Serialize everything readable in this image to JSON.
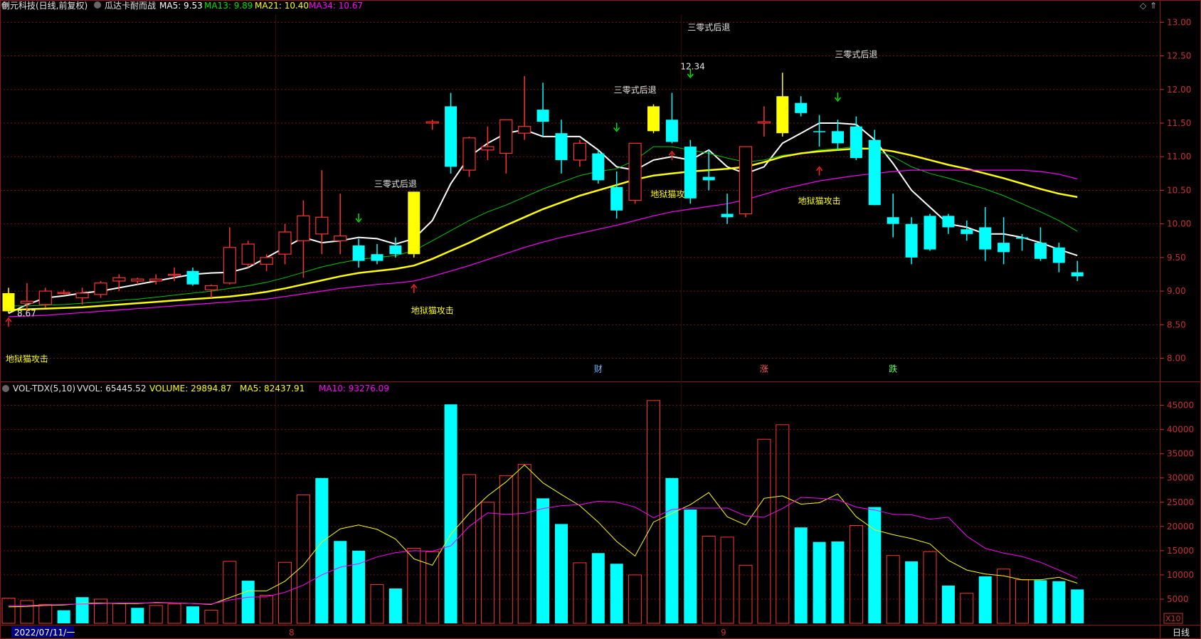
{
  "price_header": {
    "symbol": "创元科技(日线,前复权)",
    "indicator": "瓜达卡耐而战",
    "ma5": "MA5: 9.53",
    "ma13": "MA13: 9.89",
    "ma21": "MA21: 10.40",
    "ma34": "MA34: 10.67"
  },
  "vol_header": {
    "name": "VOL-TDX(5,10)",
    "vvol": "VVOL: 65445.52",
    "volume": "VOLUME: 29894.87",
    "ma5": "MA5: 82437.91",
    "ma10": "MA10: 93276.09"
  },
  "bottom_bar": {
    "date_cursor": "2022/07/11/一",
    "month_8": "8",
    "month_9": "9",
    "period": "日线",
    "scale": "X10"
  },
  "colors": {
    "up": "#ff3232",
    "down": "#00ffff",
    "signal": "#ffff00",
    "ma5": "#ffffff",
    "ma13": "#00c800",
    "ma21": "#ffff00",
    "ma34": "#ff00ff",
    "grid": "#7a1010"
  },
  "chart_data": [
    {
      "type": "candlestick",
      "title": "创元科技(日线,前复权)",
      "y_ticks": [
        "13.00",
        "12.50",
        "12.00",
        "11.50",
        "11.00",
        "10.50",
        "10.00",
        "9.50",
        "9.00",
        "8.50",
        "8.00"
      ],
      "ylim": [
        7.72,
        13.12
      ],
      "high_label": "12.34",
      "low_label": "8.67",
      "candles": [
        {
          "o": 8.7,
          "h": 9.05,
          "l": 8.67,
          "c": 8.97,
          "k": "sig"
        },
        {
          "o": 8.85,
          "h": 9.12,
          "l": 8.7,
          "c": 8.82,
          "k": "up"
        },
        {
          "o": 8.8,
          "h": 9.05,
          "l": 8.75,
          "c": 9.0,
          "k": "up"
        },
        {
          "o": 8.98,
          "h": 9.02,
          "l": 8.95,
          "c": 8.97,
          "k": "up"
        },
        {
          "o": 8.9,
          "h": 9.05,
          "l": 8.8,
          "c": 8.97,
          "k": "up"
        },
        {
          "o": 8.95,
          "h": 9.15,
          "l": 8.9,
          "c": 9.12,
          "k": "up"
        },
        {
          "o": 9.15,
          "h": 9.25,
          "l": 9.0,
          "c": 9.2,
          "k": "up"
        },
        {
          "o": 9.15,
          "h": 9.2,
          "l": 9.1,
          "c": 9.18,
          "k": "up"
        },
        {
          "o": 9.15,
          "h": 9.25,
          "l": 9.1,
          "c": 9.18,
          "k": "up"
        },
        {
          "o": 9.25,
          "h": 9.35,
          "l": 9.15,
          "c": 9.25,
          "k": "up"
        },
        {
          "o": 9.3,
          "h": 9.35,
          "l": 9.08,
          "c": 9.1,
          "k": "down"
        },
        {
          "o": 9.02,
          "h": 9.1,
          "l": 8.9,
          "c": 9.08,
          "k": "up"
        },
        {
          "o": 9.12,
          "h": 9.95,
          "l": 9.1,
          "c": 9.65,
          "k": "up"
        },
        {
          "o": 9.4,
          "h": 9.75,
          "l": 9.35,
          "c": 9.7,
          "k": "up"
        },
        {
          "o": 9.4,
          "h": 9.55,
          "l": 9.3,
          "c": 9.5,
          "k": "up"
        },
        {
          "o": 9.55,
          "h": 10.0,
          "l": 9.4,
          "c": 9.88,
          "k": "up"
        },
        {
          "o": 9.75,
          "h": 10.35,
          "l": 9.2,
          "c": 10.12,
          "k": "up"
        },
        {
          "o": 9.85,
          "h": 10.8,
          "l": 9.55,
          "c": 10.1,
          "k": "up"
        },
        {
          "o": 9.75,
          "h": 10.45,
          "l": 9.55,
          "c": 9.82,
          "k": "up"
        },
        {
          "o": 9.68,
          "h": 9.78,
          "l": 9.35,
          "c": 9.45,
          "k": "down"
        },
        {
          "o": 9.55,
          "h": 9.7,
          "l": 9.4,
          "c": 9.45,
          "k": "down"
        },
        {
          "o": 9.68,
          "h": 9.8,
          "l": 9.5,
          "c": 9.55,
          "k": "down"
        },
        {
          "o": 9.55,
          "h": 10.48,
          "l": 9.5,
          "c": 10.48,
          "k": "sig"
        },
        {
          "o": 11.5,
          "h": 11.55,
          "l": 11.4,
          "c": 11.52,
          "k": "up"
        },
        {
          "o": 11.75,
          "h": 11.95,
          "l": 10.75,
          "c": 10.85,
          "k": "down"
        },
        {
          "o": 10.8,
          "h": 11.3,
          "l": 10.7,
          "c": 11.28,
          "k": "up"
        },
        {
          "o": 11.1,
          "h": 11.45,
          "l": 10.95,
          "c": 11.15,
          "k": "up"
        },
        {
          "o": 11.05,
          "h": 11.55,
          "l": 10.75,
          "c": 11.55,
          "k": "up"
        },
        {
          "o": 11.35,
          "h": 12.2,
          "l": 11.25,
          "c": 11.45,
          "k": "up"
        },
        {
          "o": 11.7,
          "h": 12.1,
          "l": 11.3,
          "c": 11.52,
          "k": "down"
        },
        {
          "o": 11.35,
          "h": 11.55,
          "l": 10.75,
          "c": 10.95,
          "k": "down"
        },
        {
          "o": 10.95,
          "h": 11.25,
          "l": 10.85,
          "c": 11.2,
          "k": "up"
        },
        {
          "o": 11.05,
          "h": 11.1,
          "l": 10.6,
          "c": 10.65,
          "k": "down"
        },
        {
          "o": 10.55,
          "h": 10.78,
          "l": 10.08,
          "c": 10.2,
          "k": "down"
        },
        {
          "o": 10.35,
          "h": 11.2,
          "l": 10.3,
          "c": 11.2,
          "k": "up"
        },
        {
          "o": 11.38,
          "h": 11.78,
          "l": 11.35,
          "c": 11.75,
          "k": "sig"
        },
        {
          "o": 11.55,
          "h": 11.95,
          "l": 11.2,
          "c": 11.22,
          "k": "down"
        },
        {
          "o": 11.15,
          "h": 11.25,
          "l": 10.3,
          "c": 10.38,
          "k": "down"
        },
        {
          "o": 10.7,
          "h": 11.1,
          "l": 10.5,
          "c": 10.65,
          "k": "down"
        },
        {
          "o": 10.15,
          "h": 10.45,
          "l": 10.0,
          "c": 10.1,
          "k": "down"
        },
        {
          "o": 10.15,
          "h": 11.15,
          "l": 10.1,
          "c": 11.15,
          "k": "up"
        },
        {
          "o": 11.5,
          "h": 11.75,
          "l": 11.3,
          "c": 11.52,
          "k": "up"
        },
        {
          "o": 11.35,
          "h": 12.25,
          "l": 11.3,
          "c": 11.9,
          "k": "sig"
        },
        {
          "o": 11.8,
          "h": 11.9,
          "l": 11.6,
          "c": 11.65,
          "k": "down"
        },
        {
          "o": 11.38,
          "h": 11.62,
          "l": 11.15,
          "c": 11.38,
          "k": "down"
        },
        {
          "o": 11.38,
          "h": 11.55,
          "l": 11.1,
          "c": 11.2,
          "k": "down"
        },
        {
          "o": 11.45,
          "h": 11.6,
          "l": 10.95,
          "c": 10.98,
          "k": "down"
        },
        {
          "o": 11.25,
          "h": 11.4,
          "l": 10.28,
          "c": 10.28,
          "k": "down"
        },
        {
          "o": 10.1,
          "h": 10.45,
          "l": 9.8,
          "c": 10.0,
          "k": "down"
        },
        {
          "o": 10.0,
          "h": 10.1,
          "l": 9.4,
          "c": 9.5,
          "k": "down"
        },
        {
          "o": 10.12,
          "h": 10.15,
          "l": 9.6,
          "c": 9.62,
          "k": "down"
        },
        {
          "o": 10.12,
          "h": 10.15,
          "l": 9.85,
          "c": 9.95,
          "k": "down"
        },
        {
          "o": 9.92,
          "h": 10.05,
          "l": 9.75,
          "c": 9.85,
          "k": "down"
        },
        {
          "o": 9.95,
          "h": 10.25,
          "l": 9.45,
          "c": 9.62,
          "k": "down"
        },
        {
          "o": 9.72,
          "h": 10.1,
          "l": 9.4,
          "c": 9.58,
          "k": "down"
        },
        {
          "o": 9.8,
          "h": 9.85,
          "l": 9.6,
          "c": 9.78,
          "k": "down"
        },
        {
          "o": 9.72,
          "h": 9.95,
          "l": 9.45,
          "c": 9.48,
          "k": "down"
        },
        {
          "o": 9.65,
          "h": 9.72,
          "l": 9.28,
          "c": 9.42,
          "k": "down"
        },
        {
          "o": 9.28,
          "h": 9.45,
          "l": 9.15,
          "c": 9.22,
          "k": "down"
        }
      ],
      "series": [
        {
          "name": "MA5",
          "values": [
            8.67,
            8.8,
            8.9,
            8.93,
            8.97,
            9.0,
            9.05,
            9.1,
            9.15,
            9.2,
            9.25,
            9.27,
            9.28,
            9.35,
            9.5,
            9.65,
            9.8,
            9.72,
            9.75,
            9.8,
            9.78,
            9.7,
            9.78,
            10.05,
            10.6,
            11.0,
            11.2,
            11.35,
            11.4,
            11.3,
            11.3,
            11.3,
            11.1,
            10.85,
            10.8,
            10.95,
            11.0,
            10.95,
            11.1,
            10.85,
            10.75,
            10.85,
            11.2,
            11.35,
            11.5,
            11.5,
            11.48,
            11.25,
            10.9,
            10.5,
            10.25,
            10.0,
            9.95,
            9.85,
            9.85,
            9.8,
            9.72,
            9.62,
            9.53
          ]
        },
        {
          "name": "MA13",
          "values": [
            8.78,
            8.78,
            8.79,
            8.8,
            8.82,
            8.84,
            8.86,
            8.88,
            8.91,
            8.94,
            8.97,
            9.0,
            9.04,
            9.08,
            9.13,
            9.2,
            9.28,
            9.36,
            9.42,
            9.47,
            9.5,
            9.53,
            9.6,
            9.75,
            9.9,
            10.05,
            10.18,
            10.28,
            10.4,
            10.52,
            10.62,
            10.72,
            10.78,
            10.82,
            10.95,
            11.15,
            11.15,
            11.1,
            11.05,
            10.98,
            10.92,
            10.95,
            11.02,
            11.05,
            11.1,
            11.12,
            11.15,
            11.1,
            11.0,
            10.85,
            10.75,
            10.68,
            10.6,
            10.52,
            10.42,
            10.3,
            10.18,
            10.05,
            9.89
          ]
        },
        {
          "name": "MA21",
          "values": [
            8.72,
            8.73,
            8.74,
            8.75,
            8.76,
            8.78,
            8.8,
            8.82,
            8.84,
            8.86,
            8.88,
            8.9,
            8.92,
            8.95,
            8.99,
            9.04,
            9.1,
            9.16,
            9.22,
            9.27,
            9.3,
            9.33,
            9.38,
            9.48,
            9.6,
            9.72,
            9.85,
            9.98,
            10.1,
            10.22,
            10.32,
            10.42,
            10.5,
            10.58,
            10.66,
            10.72,
            10.75,
            10.78,
            10.8,
            10.82,
            10.85,
            10.92,
            11.0,
            11.05,
            11.08,
            11.1,
            11.12,
            11.12,
            11.08,
            11.02,
            10.95,
            10.88,
            10.82,
            10.75,
            10.68,
            10.6,
            10.52,
            10.45,
            10.4
          ]
        },
        {
          "name": "MA34",
          "values": [
            8.62,
            8.63,
            8.64,
            8.66,
            8.68,
            8.7,
            8.72,
            8.74,
            8.76,
            8.78,
            8.8,
            8.82,
            8.84,
            8.86,
            8.88,
            8.92,
            8.96,
            9.0,
            9.04,
            9.07,
            9.1,
            9.12,
            9.15,
            9.22,
            9.3,
            9.38,
            9.47,
            9.56,
            9.65,
            9.73,
            9.8,
            9.86,
            9.92,
            9.98,
            10.05,
            10.12,
            10.18,
            10.22,
            10.26,
            10.3,
            10.36,
            10.44,
            10.52,
            10.58,
            10.64,
            10.68,
            10.72,
            10.75,
            10.78,
            10.8,
            10.8,
            10.8,
            10.8,
            10.8,
            10.8,
            10.8,
            10.78,
            10.74,
            10.67
          ]
        }
      ],
      "annotations": [
        {
          "text": "地狱猫攻击",
          "i": 1,
          "v": 7.95,
          "c": "y"
        },
        {
          "text": "地狱猫攻击",
          "i": 23,
          "v": 8.67,
          "c": "y"
        },
        {
          "text": "三零式后退",
          "i": 21,
          "v": 10.55,
          "c": "w"
        },
        {
          "text": "三零式后退",
          "i": 34,
          "v": 11.95,
          "c": "w"
        },
        {
          "text": "地狱猫攻",
          "i": 36,
          "v": 10.4,
          "c": "y"
        },
        {
          "text": "三零式后退",
          "i": 38,
          "v": 12.88,
          "c": "w"
        },
        {
          "text": "地狱猫攻击",
          "i": 44,
          "v": 10.3,
          "c": "y"
        },
        {
          "text": "三零式后退",
          "i": 46,
          "v": 12.48,
          "c": "w"
        },
        {
          "text": "财",
          "i": 32,
          "v": 7.8,
          "c": "b"
        },
        {
          "text": "涨",
          "i": 41,
          "v": 7.8,
          "c": "r"
        },
        {
          "text": "跌",
          "i": 48,
          "v": 7.8,
          "c": "g"
        }
      ],
      "arrows": [
        {
          "i": 0,
          "dir": "up",
          "v": 8.47,
          "c": "r"
        },
        {
          "i": 22,
          "dir": "up",
          "v": 8.97,
          "c": "r"
        },
        {
          "i": 36,
          "dir": "up",
          "v": 10.95,
          "c": "r"
        },
        {
          "i": 44,
          "dir": "up",
          "v": 10.72,
          "c": "r"
        },
        {
          "i": 19,
          "dir": "down",
          "v": 10.05,
          "c": "g"
        },
        {
          "i": 33,
          "dir": "down",
          "v": 11.4,
          "c": "g"
        },
        {
          "i": 37,
          "dir": "down",
          "v": 12.2,
          "c": "g"
        },
        {
          "i": 45,
          "dir": "down",
          "v": 11.85,
          "c": "g"
        }
      ]
    },
    {
      "type": "bar",
      "title": "VOL-TDX(5,10)",
      "y_ticks": [
        5000,
        10000,
        15000,
        20000,
        25000,
        30000,
        35000,
        40000,
        45000
      ],
      "ylim": [
        0,
        47000
      ],
      "values": [
        5200,
        4700,
        3900,
        2700,
        5400,
        5000,
        4100,
        3200,
        3700,
        4000,
        3500,
        2700,
        12800,
        8800,
        5800,
        12600,
        26500,
        30000,
        17000,
        15000,
        8000,
        7200,
        15500,
        14800,
        45200,
        30700,
        25000,
        30500,
        32800,
        25800,
        20500,
        12500,
        14500,
        12300,
        10000,
        46000,
        30000,
        23500,
        18000,
        17800,
        12000,
        38000,
        41000,
        19800,
        16800,
        16900,
        20200,
        24000,
        14000,
        12800,
        14800,
        7800,
        6200,
        9700,
        11200,
        9000,
        8900,
        8700,
        7000
      ],
      "kinds": [
        "up",
        "up",
        "up",
        "down",
        "down",
        "up",
        "up",
        "down",
        "up",
        "up",
        "down",
        "up",
        "up",
        "down",
        "up",
        "up",
        "up",
        "down",
        "down",
        "down",
        "up",
        "down",
        "up",
        "up",
        "down",
        "up",
        "up",
        "up",
        "up",
        "down",
        "down",
        "up",
        "down",
        "down",
        "up",
        "up",
        "down",
        "down",
        "up",
        "up",
        "up",
        "up",
        "up",
        "down",
        "down",
        "down",
        "up",
        "down",
        "up",
        "down",
        "up",
        "down",
        "up",
        "down",
        "up",
        "up",
        "down",
        "down",
        "down"
      ],
      "series": [
        {
          "name": "MA5",
          "values": [
            3400,
            3500,
            3700,
            3800,
            4100,
            4200,
            4100,
            4100,
            4300,
            4200,
            4100,
            3900,
            5300,
            6700,
            6700,
            8700,
            12000,
            16800,
            19500,
            20300,
            19400,
            17400,
            13300,
            12000,
            18400,
            22700,
            26300,
            29200,
            32700,
            29000,
            26600,
            24300,
            20900,
            16900,
            13900,
            20900,
            22700,
            24500,
            27000,
            22000,
            20300,
            25800,
            26300,
            24600,
            24900,
            26700,
            22000,
            19300,
            18300,
            17500,
            16400,
            13000,
            11000,
            10200,
            9800,
            9000,
            9000,
            9500,
            8300
          ]
        },
        {
          "name": "MA10",
          "values": [
            3600,
            3700,
            3800,
            3900,
            4000,
            4100,
            4200,
            4200,
            4200,
            4200,
            4100,
            4000,
            4800,
            5400,
            5500,
            6400,
            7900,
            10000,
            11600,
            12300,
            13700,
            14600,
            15000,
            14900,
            16000,
            20000,
            22800,
            22500,
            22700,
            23700,
            24300,
            24500,
            25200,
            25000,
            24000,
            21800,
            23500,
            23800,
            23800,
            23800,
            22200,
            21900,
            23700,
            26000,
            25800,
            25500,
            24000,
            23400,
            22500,
            22400,
            21500,
            21900,
            18000,
            15500,
            14500,
            13800,
            12600,
            11000,
            9300
          ]
        }
      ]
    }
  ]
}
